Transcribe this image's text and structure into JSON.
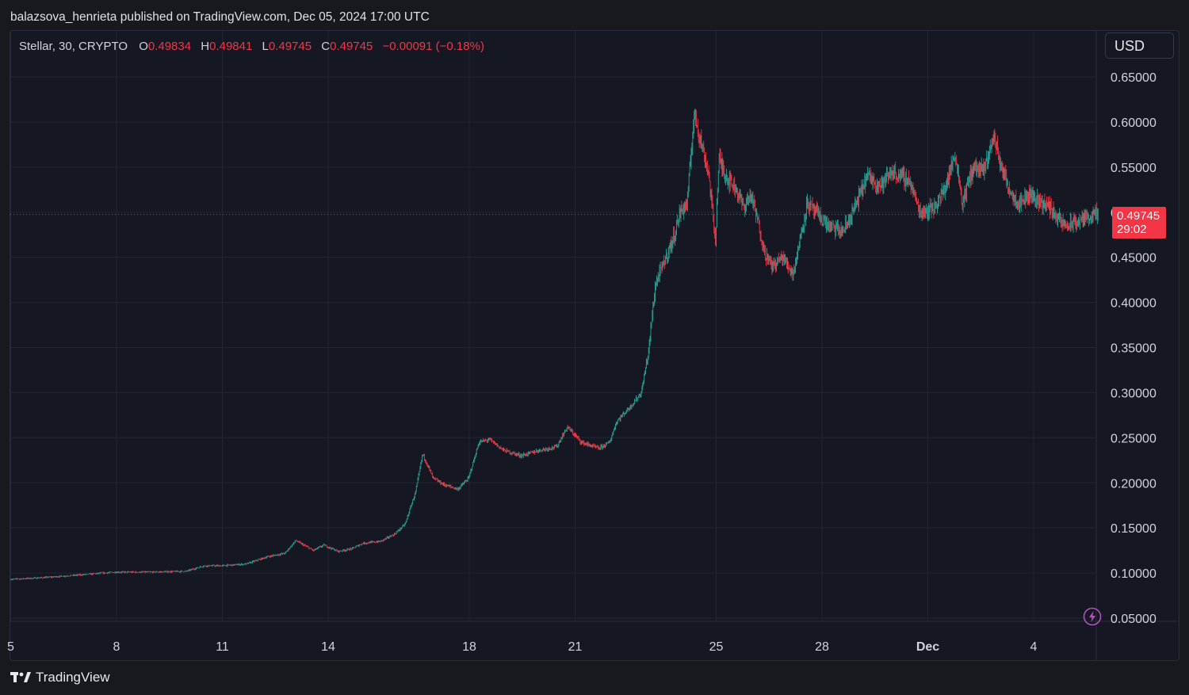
{
  "attribution": "balazsova_henrieta published on TradingView.com, Dec 05, 2024 17:00 UTC",
  "legend": {
    "symbol": "Stellar, 30, CRYPTO",
    "open_label": "O",
    "open": "0.49834",
    "high_label": "H",
    "high": "0.49841",
    "low_label": "L",
    "low": "0.49745",
    "close_label": "C",
    "close": "0.49745",
    "change": "−0.00091 (−0.18%)"
  },
  "currency": "USD",
  "price_badge": {
    "price": "0.49745",
    "countdown": "29:02"
  },
  "brand": "TradingView",
  "colors": {
    "up": "#26a69a",
    "down": "#f23645",
    "background": "#151822",
    "grid": "#222632"
  },
  "icons": {
    "logo": "tradingview-logo-icon",
    "bolt": "lightning-bolt-icon"
  },
  "chart_data": {
    "type": "candlestick",
    "interval": "30",
    "y_axis": {
      "ticks": [
        "0.65000",
        "0.60000",
        "0.55000",
        "0.50000",
        "0.45000",
        "0.40000",
        "0.35000",
        "0.30000",
        "0.25000",
        "0.20000",
        "0.15000",
        "0.10000",
        "0.05000"
      ],
      "range": [
        0.03,
        0.68
      ]
    },
    "x_axis": {
      "ticks": [
        {
          "label": "5",
          "day": 5
        },
        {
          "label": "8",
          "day": 8
        },
        {
          "label": "11",
          "day": 11
        },
        {
          "label": "14",
          "day": 14
        },
        {
          "label": "18",
          "day": 18
        },
        {
          "label": "21",
          "day": 21
        },
        {
          "label": "25",
          "day": 25
        },
        {
          "label": "28",
          "day": 28
        },
        {
          "label": "Dec",
          "day": 31
        },
        {
          "label": "4",
          "day": 34
        }
      ],
      "range_days": [
        5,
        36.8
      ]
    },
    "last_price": 0.49745,
    "key_points": [
      {
        "day": 5.0,
        "price": 0.093
      },
      {
        "day": 6.0,
        "price": 0.095
      },
      {
        "day": 7.0,
        "price": 0.098
      },
      {
        "day": 8.0,
        "price": 0.101
      },
      {
        "day": 9.0,
        "price": 0.101
      },
      {
        "day": 10.0,
        "price": 0.102
      },
      {
        "day": 10.5,
        "price": 0.108
      },
      {
        "day": 11.0,
        "price": 0.108
      },
      {
        "day": 11.7,
        "price": 0.11
      },
      {
        "day": 12.3,
        "price": 0.118
      },
      {
        "day": 12.8,
        "price": 0.122
      },
      {
        "day": 13.1,
        "price": 0.136
      },
      {
        "day": 13.6,
        "price": 0.125
      },
      {
        "day": 13.9,
        "price": 0.131
      },
      {
        "day": 14.3,
        "price": 0.124
      },
      {
        "day": 14.7,
        "price": 0.127
      },
      {
        "day": 15.0,
        "price": 0.133
      },
      {
        "day": 15.5,
        "price": 0.135
      },
      {
        "day": 15.9,
        "price": 0.143
      },
      {
        "day": 16.2,
        "price": 0.154
      },
      {
        "day": 16.5,
        "price": 0.19
      },
      {
        "day": 16.7,
        "price": 0.232
      },
      {
        "day": 17.0,
        "price": 0.205
      },
      {
        "day": 17.3,
        "price": 0.198
      },
      {
        "day": 17.7,
        "price": 0.193
      },
      {
        "day": 18.0,
        "price": 0.205
      },
      {
        "day": 18.3,
        "price": 0.245
      },
      {
        "day": 18.6,
        "price": 0.248
      },
      {
        "day": 19.0,
        "price": 0.236
      },
      {
        "day": 19.5,
        "price": 0.23
      },
      {
        "day": 20.0,
        "price": 0.236
      },
      {
        "day": 20.5,
        "price": 0.24
      },
      {
        "day": 20.8,
        "price": 0.262
      },
      {
        "day": 21.2,
        "price": 0.245
      },
      {
        "day": 21.7,
        "price": 0.238
      },
      {
        "day": 22.0,
        "price": 0.245
      },
      {
        "day": 22.2,
        "price": 0.268
      },
      {
        "day": 22.6,
        "price": 0.285
      },
      {
        "day": 22.9,
        "price": 0.3
      },
      {
        "day": 23.1,
        "price": 0.345
      },
      {
        "day": 23.3,
        "price": 0.42
      },
      {
        "day": 23.5,
        "price": 0.44
      },
      {
        "day": 23.8,
        "price": 0.47
      },
      {
        "day": 24.0,
        "price": 0.5
      },
      {
        "day": 24.2,
        "price": 0.51
      },
      {
        "day": 24.4,
        "price": 0.61
      },
      {
        "day": 24.55,
        "price": 0.585
      },
      {
        "day": 24.7,
        "price": 0.56
      },
      {
        "day": 24.8,
        "price": 0.545
      },
      {
        "day": 25.0,
        "price": 0.47
      },
      {
        "day": 25.1,
        "price": 0.56
      },
      {
        "day": 25.3,
        "price": 0.54
      },
      {
        "day": 25.6,
        "price": 0.525
      },
      {
        "day": 25.8,
        "price": 0.505
      },
      {
        "day": 26.0,
        "price": 0.52
      },
      {
        "day": 26.2,
        "price": 0.49
      },
      {
        "day": 26.4,
        "price": 0.455
      },
      {
        "day": 26.6,
        "price": 0.44
      },
      {
        "day": 26.9,
        "price": 0.45
      },
      {
        "day": 27.2,
        "price": 0.432
      },
      {
        "day": 27.4,
        "price": 0.47
      },
      {
        "day": 27.6,
        "price": 0.51
      },
      {
        "day": 27.9,
        "price": 0.497
      },
      {
        "day": 28.2,
        "price": 0.485
      },
      {
        "day": 28.6,
        "price": 0.478
      },
      {
        "day": 28.8,
        "price": 0.492
      },
      {
        "day": 29.0,
        "price": 0.51
      },
      {
        "day": 29.3,
        "price": 0.54
      },
      {
        "day": 29.7,
        "price": 0.53
      },
      {
        "day": 30.0,
        "price": 0.545
      },
      {
        "day": 30.5,
        "price": 0.535
      },
      {
        "day": 30.8,
        "price": 0.5
      },
      {
        "day": 31.2,
        "price": 0.505
      },
      {
        "day": 31.5,
        "price": 0.525
      },
      {
        "day": 31.8,
        "price": 0.565
      },
      {
        "day": 32.0,
        "price": 0.51
      },
      {
        "day": 32.3,
        "price": 0.55
      },
      {
        "day": 32.6,
        "price": 0.545
      },
      {
        "day": 32.9,
        "price": 0.585
      },
      {
        "day": 33.1,
        "price": 0.55
      },
      {
        "day": 33.4,
        "price": 0.52
      },
      {
        "day": 33.6,
        "price": 0.51
      },
      {
        "day": 33.9,
        "price": 0.52
      },
      {
        "day": 34.2,
        "price": 0.512
      },
      {
        "day": 34.5,
        "price": 0.505
      },
      {
        "day": 34.8,
        "price": 0.488
      },
      {
        "day": 35.0,
        "price": 0.485
      },
      {
        "day": 35.3,
        "price": 0.49
      },
      {
        "day": 35.6,
        "price": 0.496
      },
      {
        "day": 35.85,
        "price": 0.497
      }
    ]
  }
}
